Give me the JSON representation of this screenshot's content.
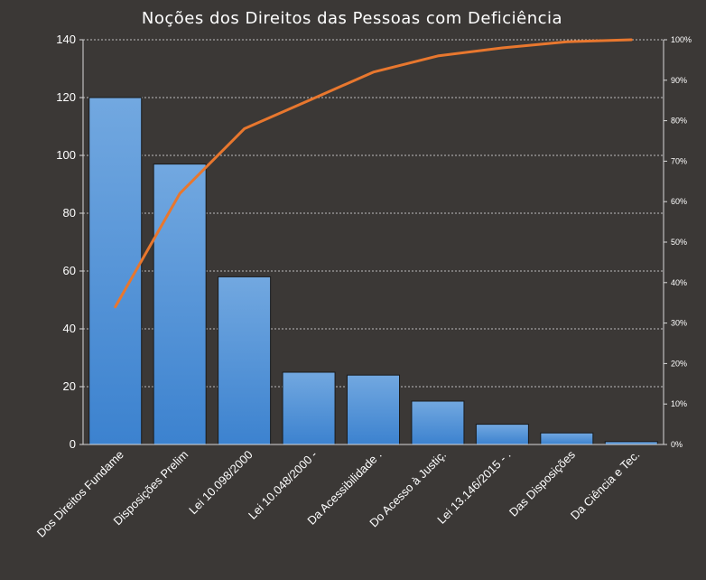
{
  "chart_data": {
    "type": "bar",
    "title": "Noções dos Direitos das Pessoas com Deficiência",
    "categories": [
      "Dos Direitos Fundame",
      "Disposições Prelim",
      "Lei 10.098/2000",
      "Lei 10.048/2000 -",
      "Da Acessibilidade .",
      "Do Acesso à Justiç.",
      "Lei 13.146/2015 - .",
      "Das Disposições",
      "Da Ciência e Tec."
    ],
    "series": [
      {
        "values": [
          120,
          97,
          58,
          25,
          24,
          15,
          7,
          4,
          1
        ]
      },
      {
        "values": [
          34,
          62,
          78,
          85,
          92,
          96,
          98,
          99.5,
          100
        ],
        "axis": "secondary",
        "kind": "line"
      }
    ],
    "ylim": [
      0,
      140
    ],
    "yticks": [
      "0",
      "20",
      "40",
      "60",
      "80",
      "100",
      "120",
      "140"
    ],
    "y2lim": [
      0,
      100
    ],
    "y2ticks": [
      "0%",
      "10%",
      "20%",
      "30%",
      "40%",
      "50%",
      "60%",
      "70%",
      "80%",
      "90%",
      "100%"
    ],
    "grid": true,
    "legend": "none",
    "colors": {
      "background": "#3b3836",
      "bar_top": "#72a8e0",
      "bar_bottom": "#3c82cf",
      "bar_stroke": "#1a1a1a",
      "line": "#e8772e",
      "grid": "#bdbdbd",
      "axis": "#d9d9d9",
      "text": "#ffffff"
    }
  }
}
